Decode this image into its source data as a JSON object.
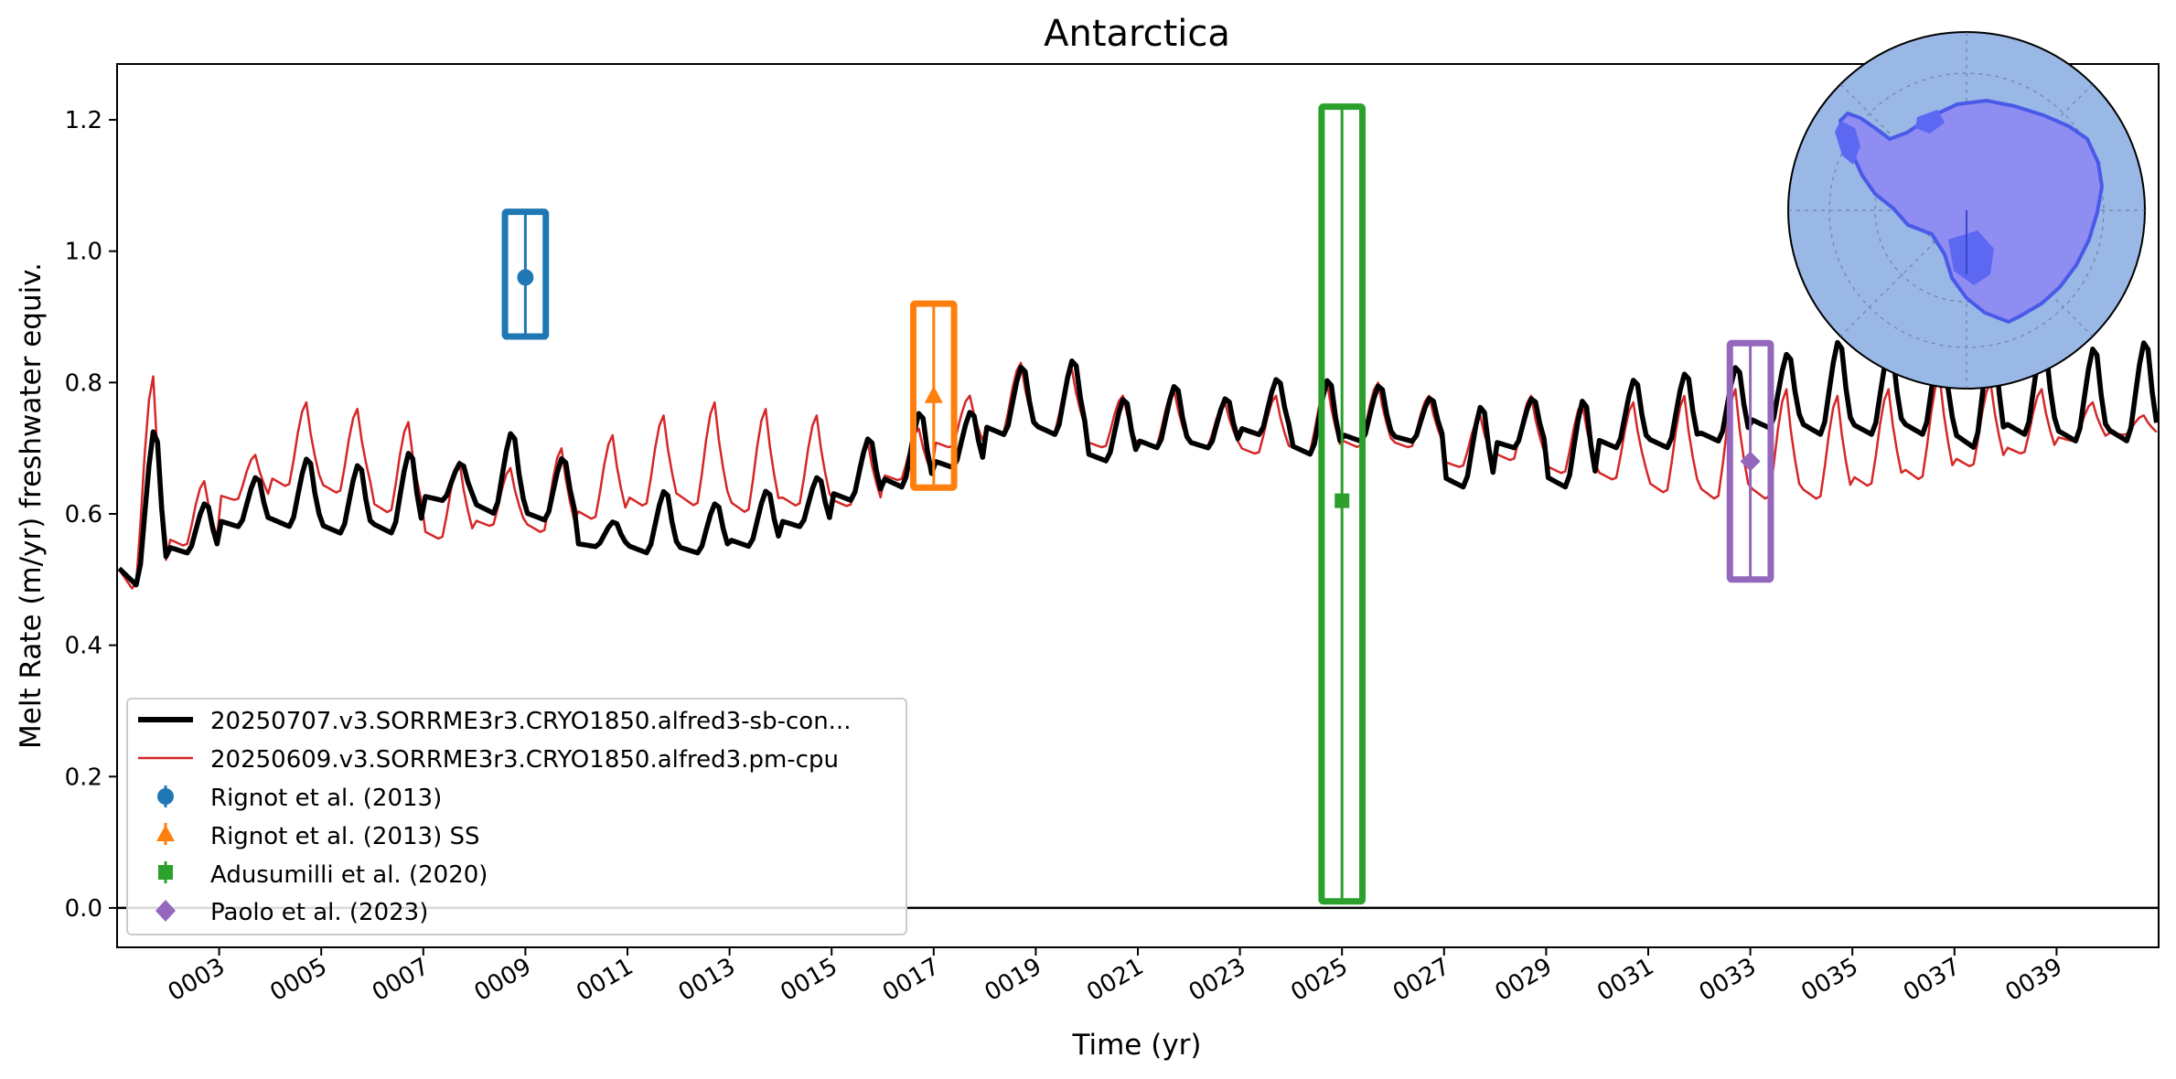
{
  "chart_data": {
    "type": "line",
    "title": "Antarctica",
    "xlabel": "Time (yr)",
    "ylabel": "Melt Rate (m/yr) freshwater equiv.",
    "xlim": [
      1,
      41
    ],
    "ylim": [
      -0.06,
      1.285
    ],
    "yticks": [
      0.0,
      0.2,
      0.4,
      0.6,
      0.8,
      1.0,
      1.2
    ],
    "ytick_labels": [
      "0.0",
      "0.2",
      "0.4",
      "0.6",
      "0.8",
      "1.0",
      "1.2"
    ],
    "xticks": [
      3,
      5,
      7,
      9,
      11,
      13,
      15,
      17,
      19,
      21,
      23,
      25,
      27,
      29,
      31,
      33,
      35,
      37,
      39
    ],
    "xtick_labels": [
      "0003",
      "0005",
      "0007",
      "0009",
      "0011",
      "0013",
      "0015",
      "0017",
      "0019",
      "0021",
      "0023",
      "0025",
      "0027",
      "0029",
      "0031",
      "0033",
      "0035",
      "0037",
      "0039"
    ],
    "grid": false,
    "zero_line": true,
    "series": [
      {
        "name": "20250707.v3.SORRME3r3.CRYO1850.alfred3-sb-con...",
        "color": "#000000",
        "style": "line-thick",
        "annual_peak": [
          0.74,
          0.62,
          0.66,
          0.69,
          0.68,
          0.7,
          0.68,
          0.73,
          0.69,
          0.59,
          0.64,
          0.62,
          0.64,
          0.66,
          0.72,
          0.76,
          0.76,
          0.83,
          0.84,
          0.78,
          0.8,
          0.78,
          0.81,
          0.81,
          0.8,
          0.78,
          0.77,
          0.78,
          0.78,
          0.81,
          0.82,
          0.83,
          0.85,
          0.87,
          0.86,
          0.87,
          0.88,
          0.87,
          0.86,
          0.87
        ],
        "annual_trough": [
          0.49,
          0.54,
          0.58,
          0.58,
          0.57,
          0.57,
          0.62,
          0.6,
          0.59,
          0.55,
          0.54,
          0.54,
          0.55,
          0.58,
          0.62,
          0.64,
          0.67,
          0.72,
          0.72,
          0.68,
          0.7,
          0.7,
          0.72,
          0.69,
          0.71,
          0.71,
          0.64,
          0.7,
          0.64,
          0.7,
          0.7,
          0.71,
          0.73,
          0.72,
          0.72,
          0.72,
          0.7,
          0.72,
          0.71,
          0.71
        ]
      },
      {
        "name": "20250609.v3.SORRME3r3.CRYO1850.alfred3.pm-cpu",
        "color": "#d62728",
        "style": "line-thin",
        "annual_peak": [
          0.81,
          0.65,
          0.69,
          0.77,
          0.76,
          0.74,
          0.68,
          0.67,
          0.7,
          0.72,
          0.75,
          0.77,
          0.76,
          0.75,
          0.71,
          0.73,
          0.78,
          0.83,
          0.82,
          0.78,
          0.79,
          0.77,
          0.78,
          0.8,
          0.8,
          0.78,
          0.75,
          0.78,
          0.77,
          0.77,
          0.78,
          0.79,
          0.79,
          0.78,
          0.79,
          0.81,
          0.8,
          0.79,
          0.77,
          0.75
        ],
        "annual_trough": [
          0.48,
          0.55,
          0.62,
          0.64,
          0.63,
          0.6,
          0.56,
          0.58,
          0.57,
          0.59,
          0.61,
          0.61,
          0.6,
          0.61,
          0.61,
          0.65,
          0.7,
          0.72,
          0.72,
          0.7,
          0.7,
          0.7,
          0.69,
          0.69,
          0.7,
          0.7,
          0.67,
          0.68,
          0.66,
          0.65,
          0.63,
          0.62,
          0.62,
          0.62,
          0.64,
          0.65,
          0.67,
          0.69,
          0.71,
          0.72
        ]
      }
    ],
    "observations": [
      {
        "name": "Rignot et al. (2013)",
        "color": "#1f77b4",
        "marker": "circle",
        "x": 9.0,
        "y": 0.96,
        "low": 0.87,
        "high": 1.06,
        "box_halfwidth": 0.4
      },
      {
        "name": "Rignot et al. (2013) SS",
        "color": "#ff7f0e",
        "marker": "triangle",
        "x": 17.0,
        "y": 0.78,
        "low": 0.64,
        "high": 0.92,
        "box_halfwidth": 0.4
      },
      {
        "name": "Adusumilli et al. (2020)",
        "color": "#2ca02c",
        "marker": "square",
        "x": 25.0,
        "y": 0.62,
        "low": 0.01,
        "high": 1.22,
        "box_halfwidth": 0.4
      },
      {
        "name": "Paolo et al. (2023)",
        "color": "#9467bd",
        "marker": "diamond",
        "x": 33.0,
        "y": 0.68,
        "low": 0.5,
        "high": 0.86,
        "box_halfwidth": 0.4
      }
    ],
    "legend_position": "lower-left",
    "inset_map": {
      "position": "top-right",
      "ocean_color": "#9ab8e6",
      "land_color": "#8f8cf2",
      "ice_shelf_color": "#5c68f2"
    }
  }
}
